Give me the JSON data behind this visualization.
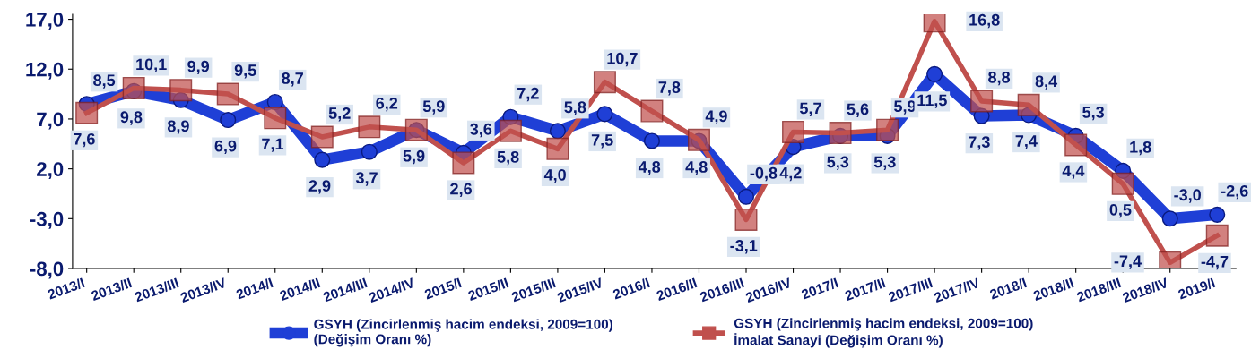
{
  "chart_data": {
    "type": "line",
    "categories": [
      "2013/I",
      "2013/II",
      "2013/III",
      "2013/IV",
      "2014/I",
      "2014/II",
      "2014/III",
      "2014/IV",
      "2015/I",
      "2015/II",
      "2015/III",
      "2015/IV",
      "2016/I",
      "2016/II",
      "2016/III",
      "2016/IV",
      "2017/I",
      "2017/II",
      "2017/III",
      "2017/IV",
      "2018/I",
      "2018/II",
      "2018/III",
      "2018/IV",
      "2019/I"
    ],
    "series": [
      {
        "name": "GSYH (Zincirlenmiş hacim endeksi, 2009=100)\n(Değişim Oranı %)",
        "color": "#1f3fd6",
        "marker": "circle",
        "values": [
          8.5,
          9.8,
          8.9,
          6.9,
          8.7,
          2.9,
          3.7,
          5.9,
          3.6,
          7.2,
          5.8,
          7.5,
          4.8,
          4.8,
          -0.8,
          4.2,
          5.3,
          5.3,
          11.5,
          7.3,
          7.4,
          5.3,
          1.8,
          -3.0,
          -2.6
        ],
        "value_labels": [
          "8,5",
          "9,8",
          "8,9",
          "6,9",
          "8,7",
          "2,9",
          "3,7",
          "5,9",
          "3,6",
          "7,2",
          "5,8",
          "7,5",
          "4,8",
          "4,8",
          "-0,8",
          "4,2",
          "5,3",
          "5,3",
          "11,5",
          "7,3",
          "7,4",
          "5,3",
          "1,8",
          "-3,0",
          "-2,6"
        ]
      },
      {
        "name": "GSYH (Zincirlenmiş hacim endeksi, 2009=100)\nİmalat Sanayi (Değişim Oranı %)",
        "color": "#c0504d",
        "marker": "square",
        "values": [
          7.6,
          10.1,
          9.9,
          9.5,
          7.1,
          5.2,
          6.2,
          5.9,
          2.6,
          5.8,
          4.0,
          10.7,
          7.8,
          4.9,
          -3.1,
          5.7,
          5.6,
          5.9,
          16.8,
          8.8,
          8.4,
          4.4,
          0.5,
          -7.4,
          -4.7
        ],
        "value_labels": [
          "7,6",
          "10,1",
          "9,9",
          "9,5",
          "7,1",
          "5,2",
          "6,2",
          "5,9",
          "2,6",
          "5,8",
          "4,0",
          "10,7",
          "7,8",
          "4,9",
          "-3,1",
          "5,7",
          "5,6",
          "5,9",
          "16,8",
          "8,8",
          "8,4",
          "4,4",
          "0,5",
          "-7,4",
          "-4,7"
        ]
      }
    ],
    "ylim": [
      -8,
      17.5
    ],
    "yticks": [
      {
        "value": -8,
        "label": "-8,0"
      },
      {
        "value": -3,
        "label": "-3,0"
      },
      {
        "value": 2,
        "label": "2,0"
      },
      {
        "value": 7,
        "label": "7,0"
      },
      {
        "value": 12,
        "label": "12,0"
      },
      {
        "value": 17,
        "label": "17,0"
      }
    ],
    "grid": false,
    "legend": "bottom"
  }
}
